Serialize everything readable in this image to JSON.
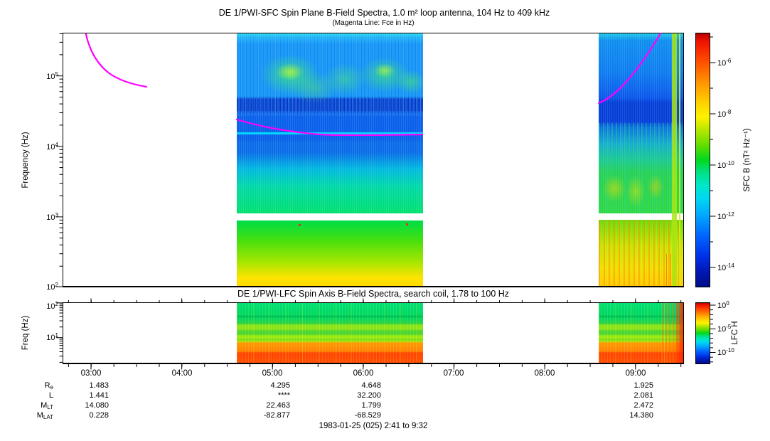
{
  "colors": {
    "fce_line": "#ff00ff",
    "frame": "#000000",
    "background": "#ffffff"
  },
  "chart_data": [
    {
      "type": "heatmap",
      "title": "DE 1/PWI-SFC  Spin Plane B-Field Spectra, 1.0 m² loop antenna, 104 Hz to 409 kHz",
      "subtitle": "(Magenta Line: Fce in Hz)",
      "ylabel": "Frequency (Hz)",
      "y_scale": "log",
      "y_range_hz": [
        100,
        409000
      ],
      "y_ticks": [
        "10^2",
        "10^3",
        "10^4",
        "10^5"
      ],
      "x_range": [
        "02:41",
        "09:32"
      ],
      "x_ticks": [
        "03:00",
        "04:00",
        "05:00",
        "06:00",
        "07:00",
        "08:00",
        "09:00"
      ],
      "x_minor_tick_minutes": 15,
      "grid": false,
      "colorbar": {
        "label": "SFC B (nT² Hz⁻¹)",
        "scale": "log",
        "ticks": [
          "10^-6",
          "10^-8",
          "10^-10",
          "10^-12",
          "10^-14"
        ],
        "colormap": "rainbow, red = high intensity, dark blue = low"
      },
      "data_coverage_intervals": [
        [
          "04:35",
          "06:37"
        ],
        [
          "08:32",
          "09:32"
        ]
      ],
      "fce_line_segments": [
        {
          "points_time_hz": [
            [
              "02:46",
              400000
            ],
            [
              "03:00",
              230000
            ],
            [
              "03:20",
              120000
            ],
            [
              "03:37",
              80000
            ]
          ]
        },
        {
          "points_time_hz": [
            [
              "04:35",
              22000
            ],
            [
              "05:10",
              17000
            ],
            [
              "05:45",
              15000
            ],
            [
              "06:37",
              15500
            ]
          ]
        },
        {
          "points_time_hz": [
            [
              "08:32",
              40000
            ],
            [
              "08:55",
              90000
            ],
            [
              "09:10",
              200000
            ],
            [
              "09:20",
              400000
            ]
          ]
        }
      ],
      "features": [
        "patchy green auroral emission clusters between ~60 kHz and 300 kHz during 04:35-06:37",
        "dark blue low-intensity band near 20-40 kHz",
        "smooth gradient from cyan to green below 10 kHz",
        "white horizontal data gap near 1 kHz band boundary",
        "green-to-yellow broadband emission from ~900 Hz down to 100 Hz",
        "rising Fce line and green/yellow vertical streaks after 08:32 with bright stripe near 09:25"
      ]
    },
    {
      "type": "heatmap",
      "title": "DE 1/PWI-LFC  Spin Axis B-Field Spectra, search coil, 1.78 to 100 Hz",
      "ylabel": "Freq (Hz)",
      "y_scale": "log",
      "y_range_hz": [
        1.78,
        100
      ],
      "y_ticks": [
        "10^1",
        "10^2"
      ],
      "x_range": [
        "02:41",
        "09:32"
      ],
      "x_ticks": [
        "03:00",
        "04:00",
        "05:00",
        "06:00",
        "07:00",
        "08:00",
        "09:00"
      ],
      "grid": false,
      "colorbar": {
        "label": "LFC H",
        "scale": "log",
        "ticks": [
          "10^0",
          "10^-5",
          "10^-10"
        ],
        "colormap": "rainbow, red = high intensity, dark blue = low"
      },
      "data_coverage_intervals": [
        [
          "04:35",
          "06:37"
        ],
        [
          "08:32",
          "09:32"
        ]
      ],
      "features": [
        "horizontally banded spectrum: green 10-100 Hz, yellow-green bands 5-20 Hz",
        "orange band near 3-4 Hz and red-orange strongest emission below ~3 Hz",
        "increased red intensity at right end approaching 09:32"
      ]
    }
  ],
  "ticks": {
    "sfc_y": [
      {
        "b": "10",
        "e": "5"
      },
      {
        "b": "10",
        "e": "4"
      },
      {
        "b": "10",
        "e": "3"
      },
      {
        "b": "10",
        "e": "2"
      }
    ],
    "sfc_cb": [
      {
        "b": "10",
        "e": "-6"
      },
      {
        "b": "10",
        "e": "-8"
      },
      {
        "b": "10",
        "e": "-10"
      },
      {
        "b": "10",
        "e": "-12"
      },
      {
        "b": "10",
        "e": "-14"
      }
    ],
    "lfc_y": [
      {
        "b": "10",
        "e": "2"
      },
      {
        "b": "10",
        "e": "1"
      }
    ],
    "lfc_cb": [
      {
        "b": "10",
        "e": "0"
      },
      {
        "b": "10",
        "e": "-5"
      },
      {
        "b": "10",
        "e": "-10"
      }
    ]
  },
  "ephemeris": {
    "columns": [
      "03:00",
      "04:00",
      "05:00",
      "06:00",
      "07:00",
      "08:00",
      "09:00"
    ],
    "rows": [
      {
        "base": "R",
        "sub": "e",
        "values": [
          "1.483",
          "",
          "4.295",
          "4.648",
          "",
          "",
          "1.925"
        ]
      },
      {
        "base": "L",
        "sub": "",
        "values": [
          "1.441",
          "",
          "****",
          "32.200",
          "",
          "",
          "2.081"
        ]
      },
      {
        "base": "M",
        "sub": "LT",
        "values": [
          "14.080",
          "",
          "22.463",
          "1.799",
          "",
          "",
          "2.472"
        ]
      },
      {
        "base": "M",
        "sub": "LAT",
        "values": [
          "0.228",
          "",
          "-82.877",
          "-68.529",
          "",
          "",
          "14.380"
        ]
      }
    ]
  },
  "footer": {
    "text": "1983-01-25 (025) 2:41 to 9:32"
  }
}
